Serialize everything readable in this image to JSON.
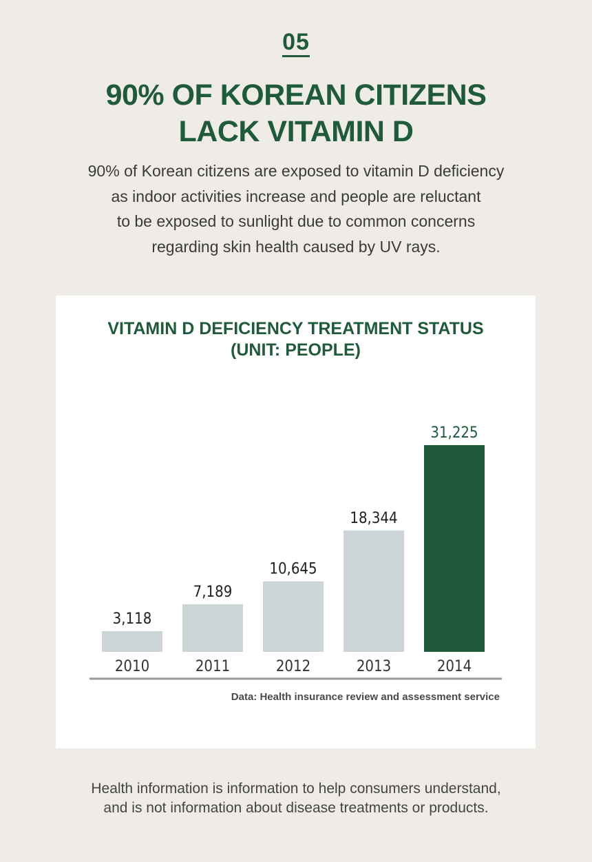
{
  "section_number": "05",
  "headline": [
    "90% OF KOREAN CITIZENS",
    "LACK VITAMIN D"
  ],
  "intro": [
    "90% of Korean citizens are exposed to vitamin D deficiency",
    "as indoor activities increase and people are reluctant",
    "to be exposed to sunlight due to common concerns",
    "regarding skin health caused by UV rays."
  ],
  "chart_data": {
    "type": "bar",
    "title": [
      "VITAMIN D DEFICIENCY TREATMENT STATUS",
      "(UNIT: PEOPLE)"
    ],
    "categories": [
      "2010",
      "2011",
      "2012",
      "2013",
      "2014"
    ],
    "values": [
      3118,
      7189,
      10645,
      18344,
      31225
    ],
    "value_labels": [
      "3,118",
      "7,189",
      "10,645",
      "18,344",
      "31,225"
    ],
    "highlight_index": 4,
    "ylim": [
      0,
      31225
    ],
    "grid": false,
    "bar_color": "#ccd6d9",
    "highlight_color": "#1f5a3a"
  },
  "source": "Data: Health insurance review and assessment service",
  "disclaimer": [
    "Health information is information to help consumers understand,",
    "and is not information about disease treatments or products."
  ]
}
